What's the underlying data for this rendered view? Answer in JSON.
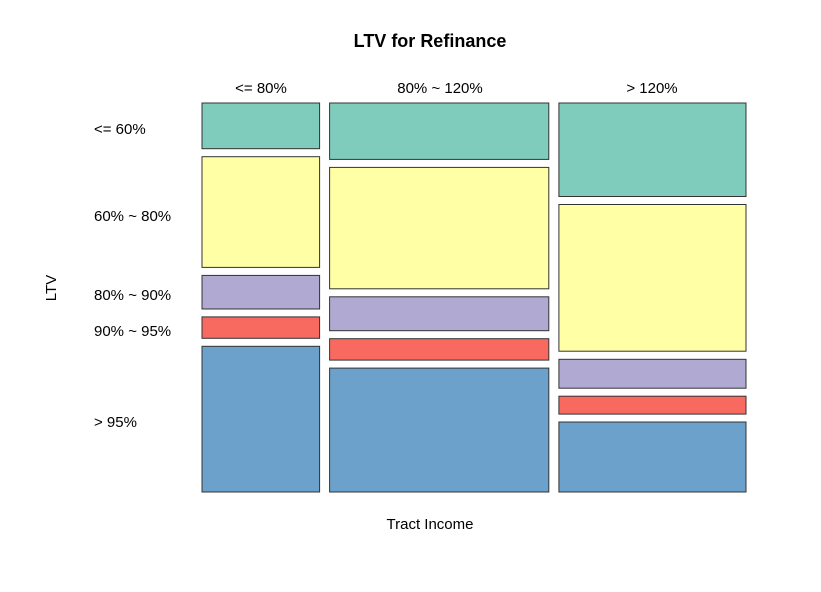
{
  "chart_data": {
    "type": "mosaic",
    "title": "LTV for Refinance",
    "xlabel": "Tract Income",
    "ylabel": "LTV",
    "x_categories": [
      "<= 80%",
      "80% ~ 120%",
      "> 120%"
    ],
    "y_categories": [
      "<= 60%",
      "60% ~ 80%",
      "80% ~ 90%",
      "90% ~ 95%",
      "> 95%"
    ],
    "colors": [
      "#7fcbbc",
      "#ffffa6",
      "#b0a9d1",
      "#f8695f",
      "#6ba1ca"
    ],
    "column_shares": [
      0.22,
      0.41,
      0.35
    ],
    "proportions": [
      [
        0.128,
        0.31,
        0.094,
        0.06,
        0.408
      ],
      [
        0.158,
        0.34,
        0.095,
        0.06,
        0.347
      ],
      [
        0.262,
        0.411,
        0.081,
        0.05,
        0.196
      ]
    ]
  }
}
